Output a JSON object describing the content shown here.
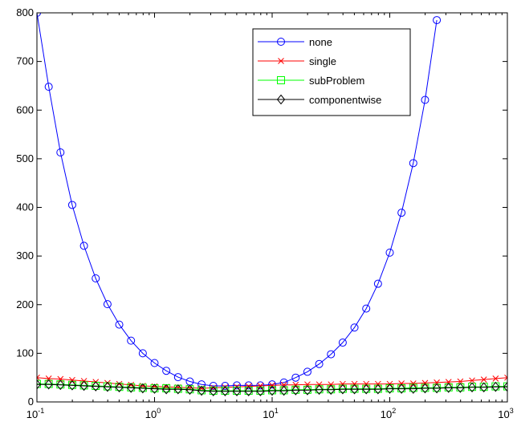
{
  "chart_data": {
    "type": "line",
    "xscale": "log",
    "xlim": [
      0.1,
      1000
    ],
    "ylim": [
      0,
      800
    ],
    "xticks": [
      {
        "base": "10",
        "exp": "-1",
        "value": 0.1
      },
      {
        "base": "10",
        "exp": "0",
        "value": 1
      },
      {
        "base": "10",
        "exp": "1",
        "value": 10
      },
      {
        "base": "10",
        "exp": "2",
        "value": 100
      },
      {
        "base": "10",
        "exp": "3",
        "value": 1000
      }
    ],
    "yticks": [
      "0",
      "100",
      "200",
      "300",
      "400",
      "500",
      "600",
      "700",
      "800"
    ],
    "grid": false,
    "legend_position": "top-right",
    "x": [
      0.1,
      0.1259,
      0.1585,
      0.1995,
      0.2512,
      0.3162,
      0.3981,
      0.5012,
      0.631,
      0.7943,
      1,
      1.2589,
      1.5849,
      1.9953,
      2.5119,
      3.1623,
      3.9811,
      5.0119,
      6.3096,
      7.9433,
      10,
      12.589,
      15.849,
      19.953,
      25.119,
      31.623,
      39.811,
      50.119,
      63.096,
      79.433,
      100,
      125.89,
      158.49,
      199.53,
      251.19,
      316.23,
      398.11,
      501.19,
      630.96,
      794.33,
      1000
    ],
    "series": [
      {
        "name": "none",
        "color": "#0000ff",
        "marker": "circle",
        "values": [
          800,
          648,
          513,
          405,
          321,
          254,
          201,
          159,
          126,
          100,
          80,
          64,
          51,
          42,
          36,
          33,
          33,
          34,
          34,
          34,
          36,
          40,
          50,
          62,
          78,
          98,
          122,
          153,
          192,
          243,
          307,
          389,
          491,
          621,
          785,
          null,
          null,
          null,
          null,
          null,
          null
        ]
      },
      {
        "name": "single",
        "color": "#ff0000",
        "marker": "x",
        "values": [
          50,
          48,
          47,
          45,
          43,
          41,
          39,
          37,
          35,
          33,
          32,
          31,
          30,
          29,
          28,
          29,
          30,
          31,
          32,
          33,
          34,
          35,
          35,
          36,
          36,
          36,
          37,
          37,
          37,
          37,
          37,
          38,
          38,
          39,
          40,
          41,
          42,
          44,
          46,
          48,
          50
        ]
      },
      {
        "name": "subProblem",
        "color": "#00ff00",
        "marker": "square",
        "values": [
          37,
          37,
          36,
          35,
          34,
          33,
          32,
          31,
          30,
          29,
          28,
          28,
          27,
          26,
          24,
          23,
          23,
          23,
          23,
          23,
          24,
          24,
          25,
          25,
          26,
          26,
          27,
          27,
          27,
          27,
          28,
          28,
          29,
          29,
          29,
          30,
          30,
          31,
          31,
          32,
          32
        ]
      },
      {
        "name": "componentwise",
        "color": "#000000",
        "marker": "diamond",
        "values": [
          36,
          36,
          35,
          34,
          33,
          32,
          31,
          30,
          29,
          28,
          27,
          26,
          26,
          25,
          23,
          22,
          22,
          22,
          22,
          22,
          23,
          23,
          24,
          24,
          25,
          25,
          26,
          26,
          26,
          26,
          27,
          27,
          27,
          28,
          28,
          29,
          29,
          30,
          30,
          31,
          31
        ]
      }
    ]
  }
}
